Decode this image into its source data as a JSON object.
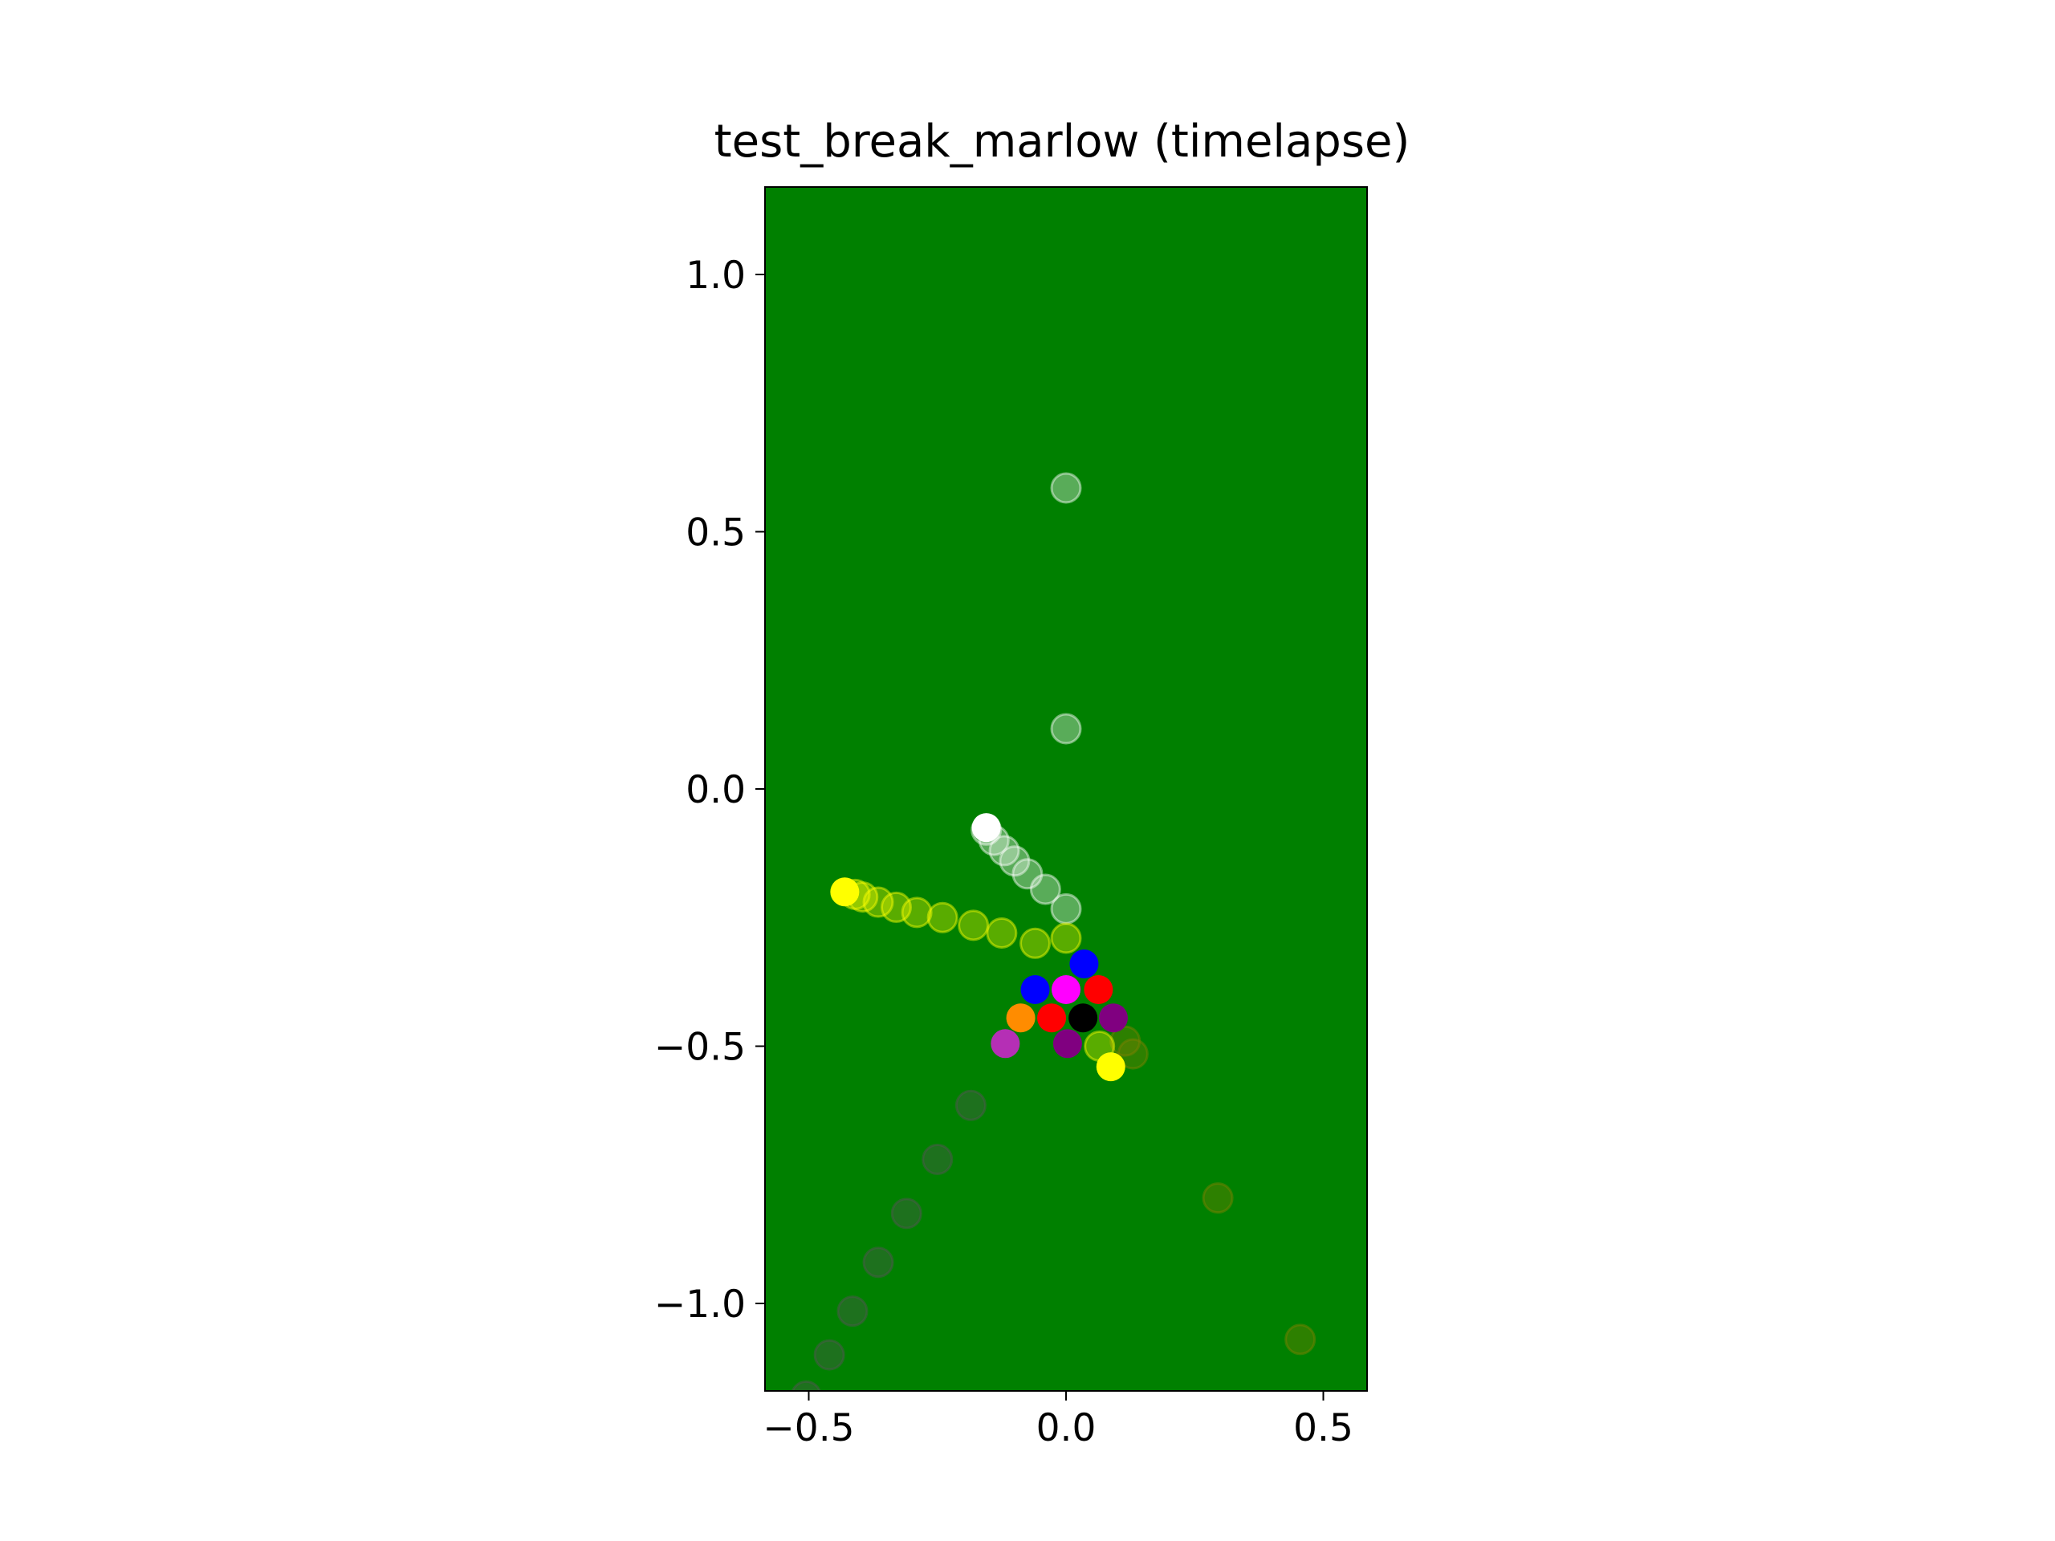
{
  "chart_data": {
    "type": "scatter",
    "title": "test_break_marlow (timelapse)",
    "xlabel": "",
    "ylabel": "",
    "xlim": [
      -0.585,
      0.585
    ],
    "ylim": [
      -1.17,
      1.17
    ],
    "xticks": [
      -0.5,
      0.0,
      0.5
    ],
    "yticks": [
      -1.0,
      -0.5,
      0.0,
      0.5,
      1.0
    ],
    "xtick_labels": [
      "−0.5",
      "0.0",
      "0.5"
    ],
    "ytick_labels": [
      "−1.0",
      "−0.5",
      "0.0",
      "0.5",
      "1.0"
    ],
    "background": "#008000",
    "grid": false,
    "legend": "none",
    "series": [
      {
        "color": "#ffffff",
        "faded": [
          [
            0.0,
            0.585
          ],
          [
            0.0,
            0.117
          ],
          [
            0.0,
            -0.233
          ],
          [
            -0.04,
            -0.195
          ],
          [
            -0.075,
            -0.165
          ],
          [
            -0.1,
            -0.14
          ],
          [
            -0.12,
            -0.12
          ],
          [
            -0.14,
            -0.1
          ],
          [
            -0.155,
            -0.08
          ]
        ],
        "final": [
          -0.155,
          -0.075
        ]
      },
      {
        "color": "#ffff00",
        "faded": [
          [
            0.0,
            -0.29
          ],
          [
            -0.06,
            -0.3
          ],
          [
            -0.125,
            -0.28
          ],
          [
            -0.18,
            -0.265
          ],
          [
            -0.24,
            -0.25
          ],
          [
            -0.29,
            -0.24
          ],
          [
            -0.33,
            -0.23
          ],
          [
            -0.365,
            -0.22
          ],
          [
            -0.395,
            -0.21
          ],
          [
            -0.41,
            -0.205
          ]
        ],
        "final": [
          -0.43,
          -0.2
        ]
      },
      {
        "color": "#555555",
        "faded": [
          [
            -0.185,
            -0.615
          ],
          [
            -0.25,
            -0.72
          ],
          [
            -0.31,
            -0.825
          ],
          [
            -0.365,
            -0.92
          ],
          [
            -0.415,
            -1.015
          ],
          [
            -0.46,
            -1.1
          ],
          [
            -0.505,
            -1.18
          ]
        ],
        "final": null
      },
      {
        "color": "#808000",
        "faded": [
          [
            0.295,
            -0.795
          ],
          [
            0.455,
            -1.07
          ]
        ],
        "final": null
      },
      {
        "color": "#808000",
        "faded": [
          [
            0.115,
            -0.49
          ],
          [
            0.13,
            -0.515
          ]
        ],
        "final": null
      },
      {
        "color": "#ffff00",
        "faded": [
          [
            0.065,
            -0.5
          ]
        ],
        "final": [
          0.087,
          -0.54
        ]
      },
      {
        "color": "#0000ff",
        "faded": [],
        "final": [
          0.035,
          -0.34
        ]
      },
      {
        "color": "#0000ff",
        "faded": [],
        "final": [
          -0.06,
          -0.39
        ]
      },
      {
        "color": "#ff00ff",
        "faded": [],
        "final": [
          0.0,
          -0.39
        ]
      },
      {
        "color": "#ff0000",
        "faded": [],
        "final": [
          0.063,
          -0.39
        ]
      },
      {
        "color": "#ff8c00",
        "faded": [],
        "final": [
          -0.088,
          -0.445
        ]
      },
      {
        "color": "#ff0000",
        "faded": [],
        "final": [
          -0.028,
          -0.445
        ]
      },
      {
        "color": "#000000",
        "faded": [],
        "final": [
          0.033,
          -0.445
        ]
      },
      {
        "color": "#800080",
        "faded": [],
        "final": [
          0.092,
          -0.445
        ]
      },
      {
        "color": "#b52fb5",
        "faded": [],
        "final": [
          -0.118,
          -0.495
        ]
      },
      {
        "color": "#800080",
        "faded": [],
        "final": [
          0.003,
          -0.495
        ]
      }
    ]
  }
}
